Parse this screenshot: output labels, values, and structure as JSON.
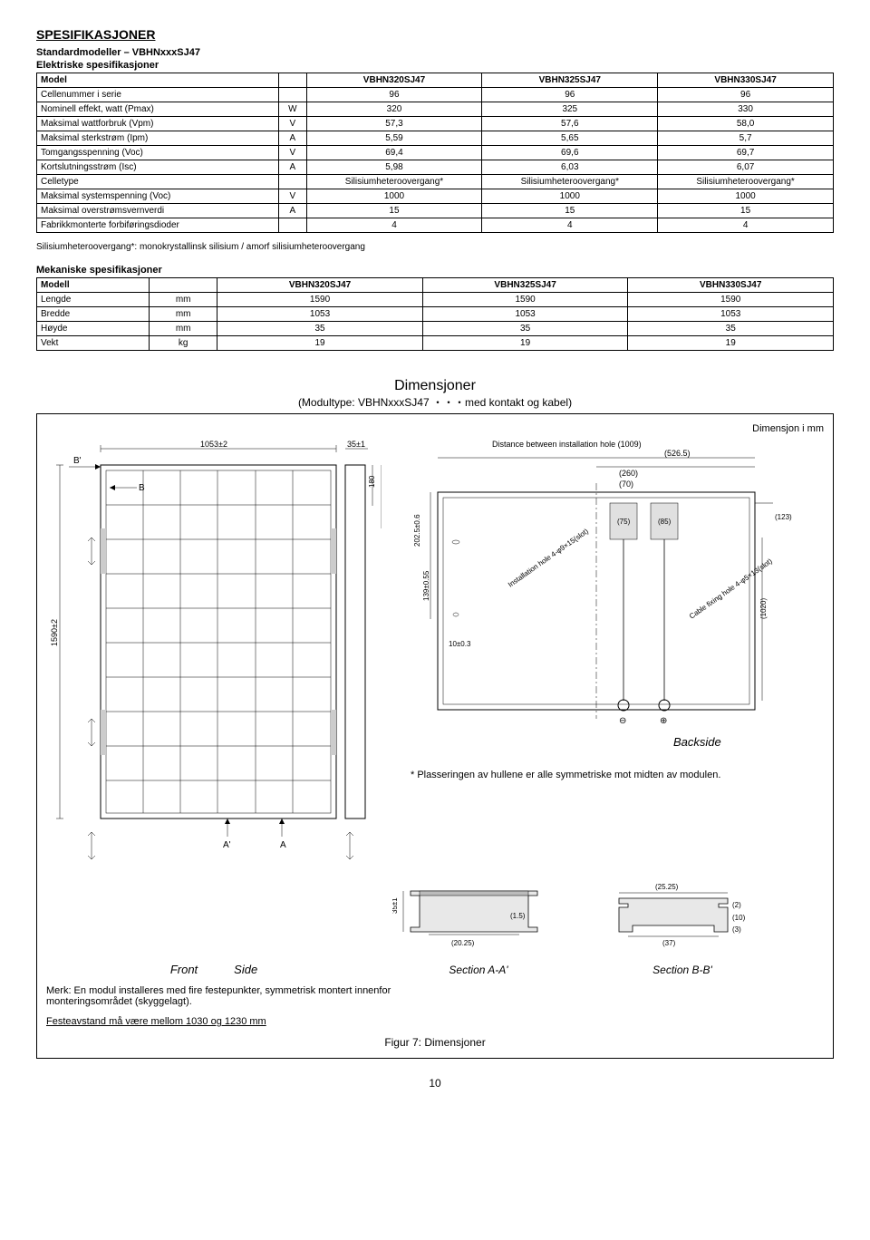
{
  "title": "SPESIFIKASJONER",
  "sub1": "Standardmodeller – VBHNxxxSJ47",
  "sub2": "Elektriske spesifikasjoner",
  "models": [
    "VBHN320SJ47",
    "VBHN325SJ47",
    "VBHN330SJ47"
  ],
  "elec_rows": [
    {
      "label": "Model",
      "unit": "",
      "v": [
        "VBHN320SJ47",
        "VBHN325SJ47",
        "VBHN330SJ47"
      ],
      "bold": true
    },
    {
      "label": "Cellenummer i serie",
      "unit": "",
      "v": [
        "96",
        "96",
        "96"
      ]
    },
    {
      "label": "Nominell effekt, watt (Pmax)",
      "unit": "W",
      "v": [
        "320",
        "325",
        "330"
      ]
    },
    {
      "label": "Maksimal wattforbruk (Vpm)",
      "unit": "V",
      "v": [
        "57,3",
        "57,6",
        "58,0"
      ]
    },
    {
      "label": "Maksimal sterkstrøm (Ipm)",
      "unit": "A",
      "v": [
        "5,59",
        "5,65",
        "5,7"
      ]
    },
    {
      "label": "Tomgangsspenning (Voc)",
      "unit": "V",
      "v": [
        "69,4",
        "69,6",
        "69,7"
      ]
    },
    {
      "label": "Kortslutningsstrøm (Isc)",
      "unit": "A",
      "v": [
        "5,98",
        "6,03",
        "6,07"
      ]
    },
    {
      "label": "Celletype",
      "unit": "",
      "v": [
        "Silisiumheteroovergang*",
        "Silisiumheteroovergang*",
        "Silisiumheteroovergang*"
      ]
    },
    {
      "label": "Maksimal systemspenning (Voc)",
      "unit": "V",
      "v": [
        "1000",
        "1000",
        "1000"
      ]
    },
    {
      "label": "Maksimal overstrømsvernverdi",
      "unit": "A",
      "v": [
        "15",
        "15",
        "15"
      ]
    },
    {
      "label": "Fabrikkmonterte forbiføringsdioder",
      "unit": "",
      "v": [
        "4",
        "4",
        "4"
      ]
    }
  ],
  "elec_note": "Silisiumheteroovergang*: monokrystallinsk silisium / amorf silisiumheteroovergang",
  "mech_header": "Mekaniske spesifikasjoner",
  "mech_rows": [
    {
      "label": "Modell",
      "unit": "",
      "v": [
        "VBHN320SJ47",
        "VBHN325SJ47",
        "VBHN330SJ47"
      ],
      "bold": true
    },
    {
      "label": "Lengde",
      "unit": "mm",
      "v": [
        "1590",
        "1590",
        "1590"
      ]
    },
    {
      "label": "Bredde",
      "unit": "mm",
      "v": [
        "1053",
        "1053",
        "1053"
      ]
    },
    {
      "label": "Høyde",
      "unit": "mm",
      "v": [
        "35",
        "35",
        "35"
      ]
    },
    {
      "label": "Vekt",
      "unit": "kg",
      "v": [
        "19",
        "19",
        "19"
      ]
    }
  ],
  "dim": {
    "title": "Dimensjoner",
    "subtitle": "(Modultype: VBHNxxxSJ47 ・・・med kontakt og kabel)",
    "unit_label": "Dimensjon  i  mm",
    "dist_label": "Distance between installation hole (1009)",
    "d_526": "(526.5)",
    "d_260": "(260)",
    "d_70": "(70)",
    "d_1053": "1053±2",
    "d_35": "35±1",
    "d_180": "180",
    "d_280": "280",
    "d_1590": "1590±2",
    "d_139": "139±0.55",
    "d_202": "202.5±0.6",
    "d_75": "(75)",
    "d_85": "(85)",
    "d_123": "(123)",
    "d_1020": "(1020)",
    "d_10": "10±0.3",
    "d_35b": "35±1",
    "d_2025": "(20.25)",
    "d_15": "(1.5)",
    "d_2525": "(25.25)",
    "d_2": "(2)",
    "d_10b": "(10)",
    "d_3": "(3)",
    "d_37": "(37)",
    "inst_hole": "Installation hole 4-φ9×15(slot)",
    "cable_hole": "Cable fixing hole 4-φ5×13(slot)",
    "backside": "Backside",
    "front": "Front",
    "side": "Side",
    "sec_a": "Section A-A'",
    "sec_b": "Section B-B'",
    "b": "B",
    "bp": "B'",
    "a": "A",
    "ap": "A'",
    "note": "* Plasseringen av hullene er alle symmetriske mot midten av modulen."
  },
  "bottom": {
    "line1": "Merk: En modul installeres med fire festepunkter, symmetrisk montert innenfor monteringsområdet (skyggelagt).",
    "line2": "Festeavstand må være mellom 1030 og 1230 mm",
    "caption": "Figur 7: Dimensjoner"
  },
  "page": "10"
}
